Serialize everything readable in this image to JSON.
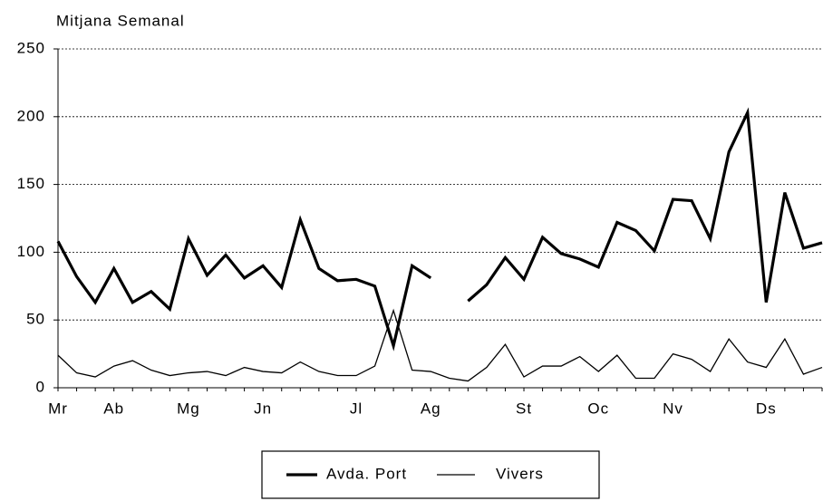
{
  "chart_data": {
    "type": "line",
    "title": "Mitjana Semanal",
    "categories": [
      "Mr",
      null,
      null,
      "Ab",
      null,
      null,
      null,
      "Mg",
      null,
      null,
      null,
      "Jn",
      null,
      null,
      null,
      null,
      "Jl",
      null,
      null,
      null,
      "Ag",
      null,
      null,
      null,
      null,
      "St",
      null,
      null,
      null,
      "Oc",
      null,
      null,
      null,
      "Nv",
      null,
      null,
      null,
      null,
      "Ds",
      null,
      null,
      null
    ],
    "series": [
      {
        "name": "Avda. Port",
        "color": "#000000",
        "values": [
          108,
          82,
          63,
          88,
          63,
          71,
          58,
          110,
          83,
          98,
          81,
          90,
          74,
          124,
          88,
          79,
          80,
          75,
          31,
          90,
          81,
          null,
          64,
          76,
          96,
          80,
          111,
          99,
          95,
          89,
          122,
          116,
          101,
          139,
          138,
          110,
          174,
          203,
          63,
          144,
          103,
          107
        ]
      },
      {
        "name": "Vivers",
        "color": "#000000",
        "values": [
          24,
          11,
          8,
          16,
          20,
          13,
          9,
          11,
          12,
          9,
          15,
          12,
          11,
          19,
          12,
          9,
          9,
          16,
          57,
          13,
          12,
          7,
          5,
          15,
          32,
          8,
          16,
          16,
          23,
          12,
          24,
          7,
          7,
          25,
          21,
          12,
          36,
          19,
          15,
          36,
          10,
          15
        ]
      }
    ],
    "ylim": [
      0,
      250
    ],
    "yticks": [
      0,
      50,
      100,
      150,
      200,
      250
    ],
    "grid": true
  }
}
